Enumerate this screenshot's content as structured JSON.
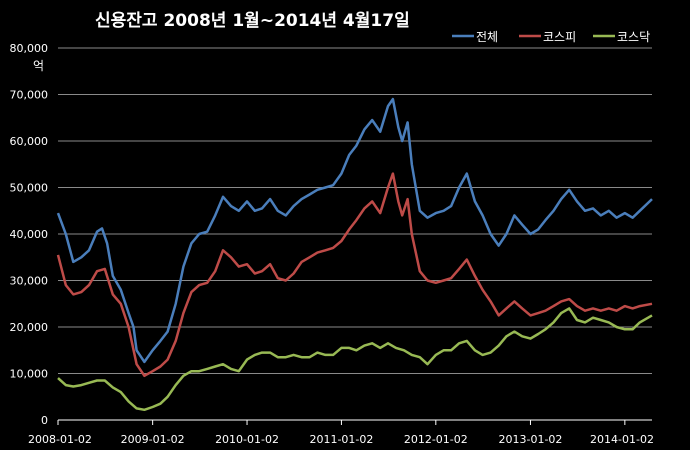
{
  "chart_data": {
    "type": "line",
    "title": "신용잔고  2008년 1월~2014년 4월17일",
    "y_unit": "억",
    "ylim": [
      0,
      80000
    ],
    "y_ticks": [
      "80,000",
      "70,000",
      "60,000",
      "50,000",
      "40,000",
      "30,000",
      "20,000",
      "10,000",
      "0"
    ],
    "x_ticks": [
      "2008-01-02",
      "2009-01-02",
      "2010-01-02",
      "2011-01-02",
      "2012-01-02",
      "2013-01-02",
      "2014-01-02"
    ],
    "xlim": [
      "2008-01-02",
      "2014-04-17"
    ],
    "grid": true,
    "legend_position": "top-right",
    "series": [
      {
        "name": "전체",
        "color": "#4a7ebb",
        "points": [
          [
            "2008-01-02",
            44500
          ],
          [
            "2008-02-01",
            40000
          ],
          [
            "2008-03-01",
            34000
          ],
          [
            "2008-04-01",
            35000
          ],
          [
            "2008-05-01",
            36500
          ],
          [
            "2008-06-01",
            40500
          ],
          [
            "2008-06-20",
            41200
          ],
          [
            "2008-07-10",
            38000
          ],
          [
            "2008-08-01",
            31000
          ],
          [
            "2008-09-01",
            28000
          ],
          [
            "2008-10-01",
            23000
          ],
          [
            "2008-10-20",
            20000
          ],
          [
            "2008-11-01",
            15000
          ],
          [
            "2008-12-01",
            12500
          ],
          [
            "2009-01-02",
            15000
          ],
          [
            "2009-02-01",
            17000
          ],
          [
            "2009-03-01",
            19000
          ],
          [
            "2009-04-01",
            25000
          ],
          [
            "2009-05-01",
            33000
          ],
          [
            "2009-06-01",
            38000
          ],
          [
            "2009-07-01",
            40000
          ],
          [
            "2009-08-01",
            40500
          ],
          [
            "2009-09-01",
            44000
          ],
          [
            "2009-10-01",
            48000
          ],
          [
            "2009-11-01",
            46000
          ],
          [
            "2009-12-01",
            45000
          ],
          [
            "2010-01-02",
            47000
          ],
          [
            "2010-02-01",
            45000
          ],
          [
            "2010-03-01",
            45500
          ],
          [
            "2010-04-01",
            47500
          ],
          [
            "2010-05-01",
            45000
          ],
          [
            "2010-06-01",
            44000
          ],
          [
            "2010-07-01",
            46000
          ],
          [
            "2010-08-01",
            47500
          ],
          [
            "2010-09-01",
            48500
          ],
          [
            "2010-10-01",
            49500
          ],
          [
            "2010-11-01",
            50000
          ],
          [
            "2010-12-01",
            50500
          ],
          [
            "2011-01-02",
            53000
          ],
          [
            "2011-02-01",
            57000
          ],
          [
            "2011-03-01",
            59000
          ],
          [
            "2011-04-01",
            62500
          ],
          [
            "2011-05-01",
            64500
          ],
          [
            "2011-06-01",
            62000
          ],
          [
            "2011-07-01",
            67500
          ],
          [
            "2011-07-20",
            69000
          ],
          [
            "2011-08-10",
            63000
          ],
          [
            "2011-08-25",
            60000
          ],
          [
            "2011-09-15",
            64000
          ],
          [
            "2011-10-01",
            55000
          ],
          [
            "2011-11-01",
            45000
          ],
          [
            "2011-12-01",
            43500
          ],
          [
            "2012-01-02",
            44500
          ],
          [
            "2012-02-01",
            45000
          ],
          [
            "2012-03-01",
            46000
          ],
          [
            "2012-04-01",
            50000
          ],
          [
            "2012-05-01",
            53000
          ],
          [
            "2012-06-01",
            47000
          ],
          [
            "2012-07-01",
            44000
          ],
          [
            "2012-08-01",
            40000
          ],
          [
            "2012-09-01",
            37500
          ],
          [
            "2012-10-01",
            40000
          ],
          [
            "2012-11-01",
            44000
          ],
          [
            "2012-12-01",
            42000
          ],
          [
            "2013-01-02",
            40000
          ],
          [
            "2013-02-01",
            41000
          ],
          [
            "2013-03-01",
            43000
          ],
          [
            "2013-04-01",
            45000
          ],
          [
            "2013-05-01",
            47500
          ],
          [
            "2013-06-01",
            49500
          ],
          [
            "2013-07-01",
            47000
          ],
          [
            "2013-08-01",
            45000
          ],
          [
            "2013-09-01",
            45500
          ],
          [
            "2013-10-01",
            44000
          ],
          [
            "2013-11-01",
            45000
          ],
          [
            "2013-12-01",
            43500
          ],
          [
            "2014-01-02",
            44500
          ],
          [
            "2014-02-01",
            43500
          ],
          [
            "2014-03-01",
            45000
          ],
          [
            "2014-04-17",
            47500
          ]
        ]
      },
      {
        "name": "코스피",
        "color": "#be4b48",
        "points": [
          [
            "2008-01-02",
            35500
          ],
          [
            "2008-02-01",
            29000
          ],
          [
            "2008-03-01",
            27000
          ],
          [
            "2008-04-01",
            27500
          ],
          [
            "2008-05-01",
            29000
          ],
          [
            "2008-06-01",
            32000
          ],
          [
            "2008-07-01",
            32500
          ],
          [
            "2008-08-01",
            27000
          ],
          [
            "2008-09-01",
            25000
          ],
          [
            "2008-10-01",
            20000
          ],
          [
            "2008-11-01",
            12000
          ],
          [
            "2008-12-01",
            9500
          ],
          [
            "2009-01-02",
            10500
          ],
          [
            "2009-02-01",
            11500
          ],
          [
            "2009-03-01",
            13000
          ],
          [
            "2009-04-01",
            17000
          ],
          [
            "2009-05-01",
            23000
          ],
          [
            "2009-06-01",
            27500
          ],
          [
            "2009-07-01",
            29000
          ],
          [
            "2009-08-01",
            29500
          ],
          [
            "2009-09-01",
            32000
          ],
          [
            "2009-10-01",
            36500
          ],
          [
            "2009-11-01",
            35000
          ],
          [
            "2009-12-01",
            33000
          ],
          [
            "2010-01-02",
            33500
          ],
          [
            "2010-02-01",
            31500
          ],
          [
            "2010-03-01",
            32000
          ],
          [
            "2010-04-01",
            33500
          ],
          [
            "2010-05-01",
            30500
          ],
          [
            "2010-06-01",
            30000
          ],
          [
            "2010-07-01",
            31500
          ],
          [
            "2010-08-01",
            34000
          ],
          [
            "2010-09-01",
            35000
          ],
          [
            "2010-10-01",
            36000
          ],
          [
            "2010-11-01",
            36500
          ],
          [
            "2010-12-01",
            37000
          ],
          [
            "2011-01-02",
            38500
          ],
          [
            "2011-02-01",
            41000
          ],
          [
            "2011-03-01",
            43000
          ],
          [
            "2011-04-01",
            45500
          ],
          [
            "2011-05-01",
            47000
          ],
          [
            "2011-06-01",
            44500
          ],
          [
            "2011-07-01",
            50000
          ],
          [
            "2011-07-20",
            53000
          ],
          [
            "2011-08-10",
            47000
          ],
          [
            "2011-08-25",
            44000
          ],
          [
            "2011-09-15",
            47500
          ],
          [
            "2011-10-01",
            40000
          ],
          [
            "2011-11-01",
            32000
          ],
          [
            "2011-12-01",
            30000
          ],
          [
            "2012-01-02",
            29500
          ],
          [
            "2012-02-01",
            30000
          ],
          [
            "2012-03-01",
            30500
          ],
          [
            "2012-04-01",
            32500
          ],
          [
            "2012-05-01",
            34500
          ],
          [
            "2012-06-01",
            31000
          ],
          [
            "2012-07-01",
            28000
          ],
          [
            "2012-08-01",
            25500
          ],
          [
            "2012-09-01",
            22500
          ],
          [
            "2012-10-01",
            24000
          ],
          [
            "2012-11-01",
            25500
          ],
          [
            "2012-12-01",
            24000
          ],
          [
            "2013-01-02",
            22500
          ],
          [
            "2013-02-01",
            23000
          ],
          [
            "2013-03-01",
            23500
          ],
          [
            "2013-04-01",
            24500
          ],
          [
            "2013-05-01",
            25500
          ],
          [
            "2013-06-01",
            26000
          ],
          [
            "2013-07-01",
            24500
          ],
          [
            "2013-08-01",
            23500
          ],
          [
            "2013-09-01",
            24000
          ],
          [
            "2013-10-01",
            23500
          ],
          [
            "2013-11-01",
            24000
          ],
          [
            "2013-12-01",
            23500
          ],
          [
            "2014-01-02",
            24500
          ],
          [
            "2014-02-01",
            24000
          ],
          [
            "2014-03-01",
            24500
          ],
          [
            "2014-04-17",
            25000
          ]
        ]
      },
      {
        "name": "코스닥",
        "color": "#98b954",
        "points": [
          [
            "2008-01-02",
            9000
          ],
          [
            "2008-02-01",
            7500
          ],
          [
            "2008-03-01",
            7200
          ],
          [
            "2008-04-01",
            7500
          ],
          [
            "2008-05-01",
            8000
          ],
          [
            "2008-06-01",
            8500
          ],
          [
            "2008-07-01",
            8500
          ],
          [
            "2008-08-01",
            7000
          ],
          [
            "2008-09-01",
            6000
          ],
          [
            "2008-10-01",
            4000
          ],
          [
            "2008-11-01",
            2500
          ],
          [
            "2008-12-01",
            2200
          ],
          [
            "2009-01-02",
            2800
          ],
          [
            "2009-02-01",
            3500
          ],
          [
            "2009-03-01",
            5000
          ],
          [
            "2009-04-01",
            7500
          ],
          [
            "2009-05-01",
            9500
          ],
          [
            "2009-06-01",
            10500
          ],
          [
            "2009-07-01",
            10500
          ],
          [
            "2009-08-01",
            11000
          ],
          [
            "2009-09-01",
            11500
          ],
          [
            "2009-10-01",
            12000
          ],
          [
            "2009-11-01",
            11000
          ],
          [
            "2009-12-01",
            10500
          ],
          [
            "2010-01-02",
            13000
          ],
          [
            "2010-02-01",
            14000
          ],
          [
            "2010-03-01",
            14500
          ],
          [
            "2010-04-01",
            14500
          ],
          [
            "2010-05-01",
            13500
          ],
          [
            "2010-06-01",
            13500
          ],
          [
            "2010-07-01",
            14000
          ],
          [
            "2010-08-01",
            13500
          ],
          [
            "2010-09-01",
            13500
          ],
          [
            "2010-10-01",
            14500
          ],
          [
            "2010-11-01",
            14000
          ],
          [
            "2010-12-01",
            14000
          ],
          [
            "2011-01-02",
            15500
          ],
          [
            "2011-02-01",
            15500
          ],
          [
            "2011-03-01",
            15000
          ],
          [
            "2011-04-01",
            16000
          ],
          [
            "2011-05-01",
            16500
          ],
          [
            "2011-06-01",
            15500
          ],
          [
            "2011-07-01",
            16500
          ],
          [
            "2011-08-01",
            15500
          ],
          [
            "2011-09-01",
            15000
          ],
          [
            "2011-10-01",
            14000
          ],
          [
            "2011-11-01",
            13500
          ],
          [
            "2011-12-01",
            12000
          ],
          [
            "2012-01-02",
            14000
          ],
          [
            "2012-02-01",
            15000
          ],
          [
            "2012-03-01",
            15000
          ],
          [
            "2012-04-01",
            16500
          ],
          [
            "2012-05-01",
            17000
          ],
          [
            "2012-06-01",
            15000
          ],
          [
            "2012-07-01",
            14000
          ],
          [
            "2012-08-01",
            14500
          ],
          [
            "2012-09-01",
            16000
          ],
          [
            "2012-10-01",
            18000
          ],
          [
            "2012-11-01",
            19000
          ],
          [
            "2012-12-01",
            18000
          ],
          [
            "2013-01-02",
            17500
          ],
          [
            "2013-02-01",
            18500
          ],
          [
            "2013-03-01",
            19500
          ],
          [
            "2013-04-01",
            21000
          ],
          [
            "2013-05-01",
            23000
          ],
          [
            "2013-06-01",
            24000
          ],
          [
            "2013-07-01",
            21500
          ],
          [
            "2013-08-01",
            21000
          ],
          [
            "2013-09-01",
            22000
          ],
          [
            "2013-10-01",
            21500
          ],
          [
            "2013-11-01",
            21000
          ],
          [
            "2013-12-01",
            20000
          ],
          [
            "2014-01-02",
            19500
          ],
          [
            "2014-02-01",
            19500
          ],
          [
            "2014-03-01",
            21000
          ],
          [
            "2014-04-17",
            22500
          ]
        ]
      }
    ]
  }
}
